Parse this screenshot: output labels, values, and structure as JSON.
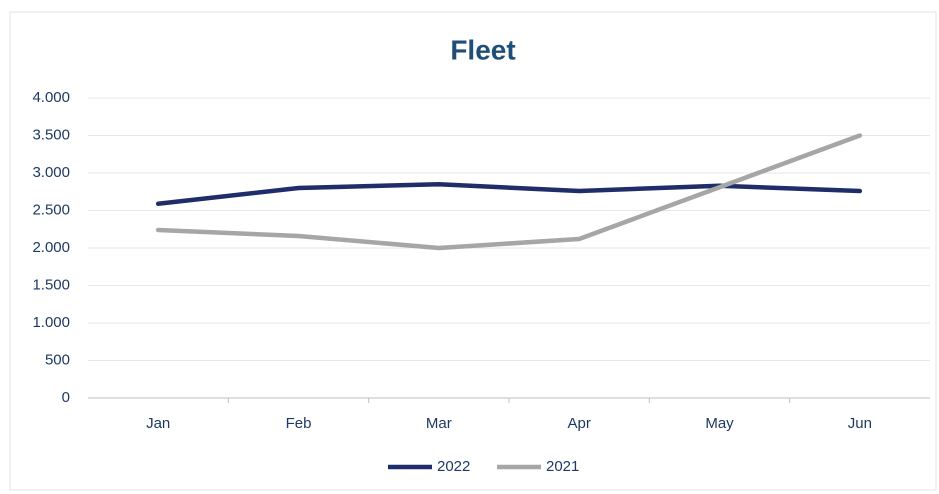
{
  "chart_data": {
    "type": "line",
    "title": "Fleet",
    "categories": [
      "Jan",
      "Feb",
      "Mar",
      "Apr",
      "May",
      "Jun"
    ],
    "series": [
      {
        "name": "2022",
        "color": "#1f2d6b",
        "values": [
          2590,
          2800,
          2850,
          2760,
          2830,
          2760
        ]
      },
      {
        "name": "2021",
        "color": "#a6a6a6",
        "values": [
          2240,
          2160,
          2000,
          2120,
          2810,
          3500
        ]
      }
    ],
    "ylim": [
      0,
      4000
    ],
    "yticks": [
      0,
      500,
      {
        "value": 1000,
        "label": "1.000"
      },
      {
        "value": 1500,
        "label": "1.500"
      },
      {
        "value": 2000,
        "label": "2.000"
      },
      {
        "value": 2500,
        "label": "2.500"
      },
      {
        "value": 3000,
        "label": "3.000"
      },
      {
        "value": 3500,
        "label": "3.500"
      },
      {
        "value": 4000,
        "label": "4.000"
      }
    ],
    "grid": true,
    "legend": "bottom"
  }
}
